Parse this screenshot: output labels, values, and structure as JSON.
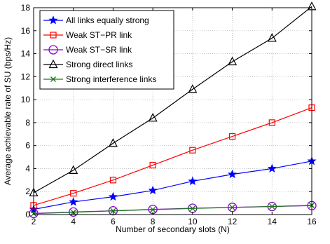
{
  "chart_data": {
    "type": "line",
    "title": "",
    "xlabel": "Number of secondary slots (N)",
    "ylabel": "Average achievable rate of SU (bps/Hz)",
    "x": [
      2,
      4,
      6,
      8,
      10,
      12,
      14,
      16
    ],
    "xlim": [
      2,
      16
    ],
    "ylim": [
      0,
      18
    ],
    "xticks": [
      2,
      4,
      6,
      8,
      10,
      12,
      14,
      16
    ],
    "yticks": [
      0,
      2,
      4,
      6,
      8,
      10,
      12,
      14,
      16,
      18
    ],
    "grid": true,
    "legend_position": "top-left",
    "series": [
      {
        "name": "All links equally strong",
        "color": "#0000ff",
        "marker": "star",
        "values": [
          0.45,
          1.1,
          1.55,
          2.1,
          2.9,
          3.5,
          4.0,
          4.65
        ]
      },
      {
        "name": "Weak ST−PR link",
        "color": "#ff0000",
        "marker": "square",
        "values": [
          0.8,
          1.85,
          3.0,
          4.3,
          5.6,
          6.8,
          8.0,
          9.3
        ]
      },
      {
        "name": "Weak ST−SR link",
        "color": "#8800cc",
        "marker": "circle",
        "values": [
          0.1,
          0.22,
          0.33,
          0.45,
          0.55,
          0.63,
          0.7,
          0.78
        ]
      },
      {
        "name": "Strong direct links",
        "color": "#000000",
        "marker": "triangle",
        "values": [
          1.9,
          3.85,
          6.2,
          8.4,
          10.9,
          13.3,
          15.35,
          18.1
        ]
      },
      {
        "name": "Strong interference links",
        "color": "#1a7a1a",
        "marker": "x",
        "values": [
          0.08,
          0.2,
          0.32,
          0.43,
          0.53,
          0.62,
          0.7,
          0.8
        ]
      }
    ]
  }
}
